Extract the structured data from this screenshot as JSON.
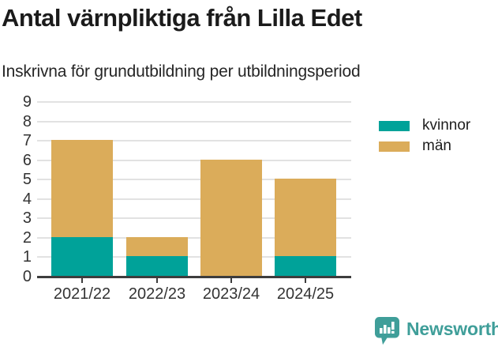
{
  "header": {
    "title": "Antal värnpliktiga från Lilla Edet",
    "subtitle": "Inskrivna för grundutbildning per utbildningsperiod"
  },
  "chart_data": {
    "type": "bar",
    "stacked": true,
    "title": "Antal värnpliktiga från Lilla Edet",
    "subtitle": "Inskrivna för grundutbildning per utbildningsperiod",
    "categories": [
      "2021/22",
      "2022/23",
      "2023/24",
      "2024/25"
    ],
    "series": [
      {
        "name": "kvinnor",
        "color": "#00a299",
        "values": [
          2,
          1,
          0,
          1
        ]
      },
      {
        "name": "män",
        "color": "#dbac5a",
        "values": [
          5,
          1,
          6,
          4
        ]
      }
    ],
    "totals": [
      7,
      2,
      6,
      5
    ],
    "xlabel": "",
    "ylabel": "",
    "ylim": [
      0,
      9
    ],
    "yticks": [
      0,
      1,
      2,
      3,
      4,
      5,
      6,
      7,
      8,
      9
    ],
    "grid": true,
    "legend_position": "top-right"
  },
  "footer": {
    "brand": "Newsworthy",
    "brand_color": "#3f9e99",
    "logo_icon": "newsworthy-chart-bubble-icon"
  },
  "colors": {
    "kvinnor": "#00a299",
    "man": "#dbac5a",
    "gridline": "#e2e2e2",
    "axis": "#3d3d3d",
    "text_dark": "#1b1b1b",
    "tick_text": "#333333",
    "brand_teal": "#3f9e99",
    "background": "#ffffff"
  }
}
